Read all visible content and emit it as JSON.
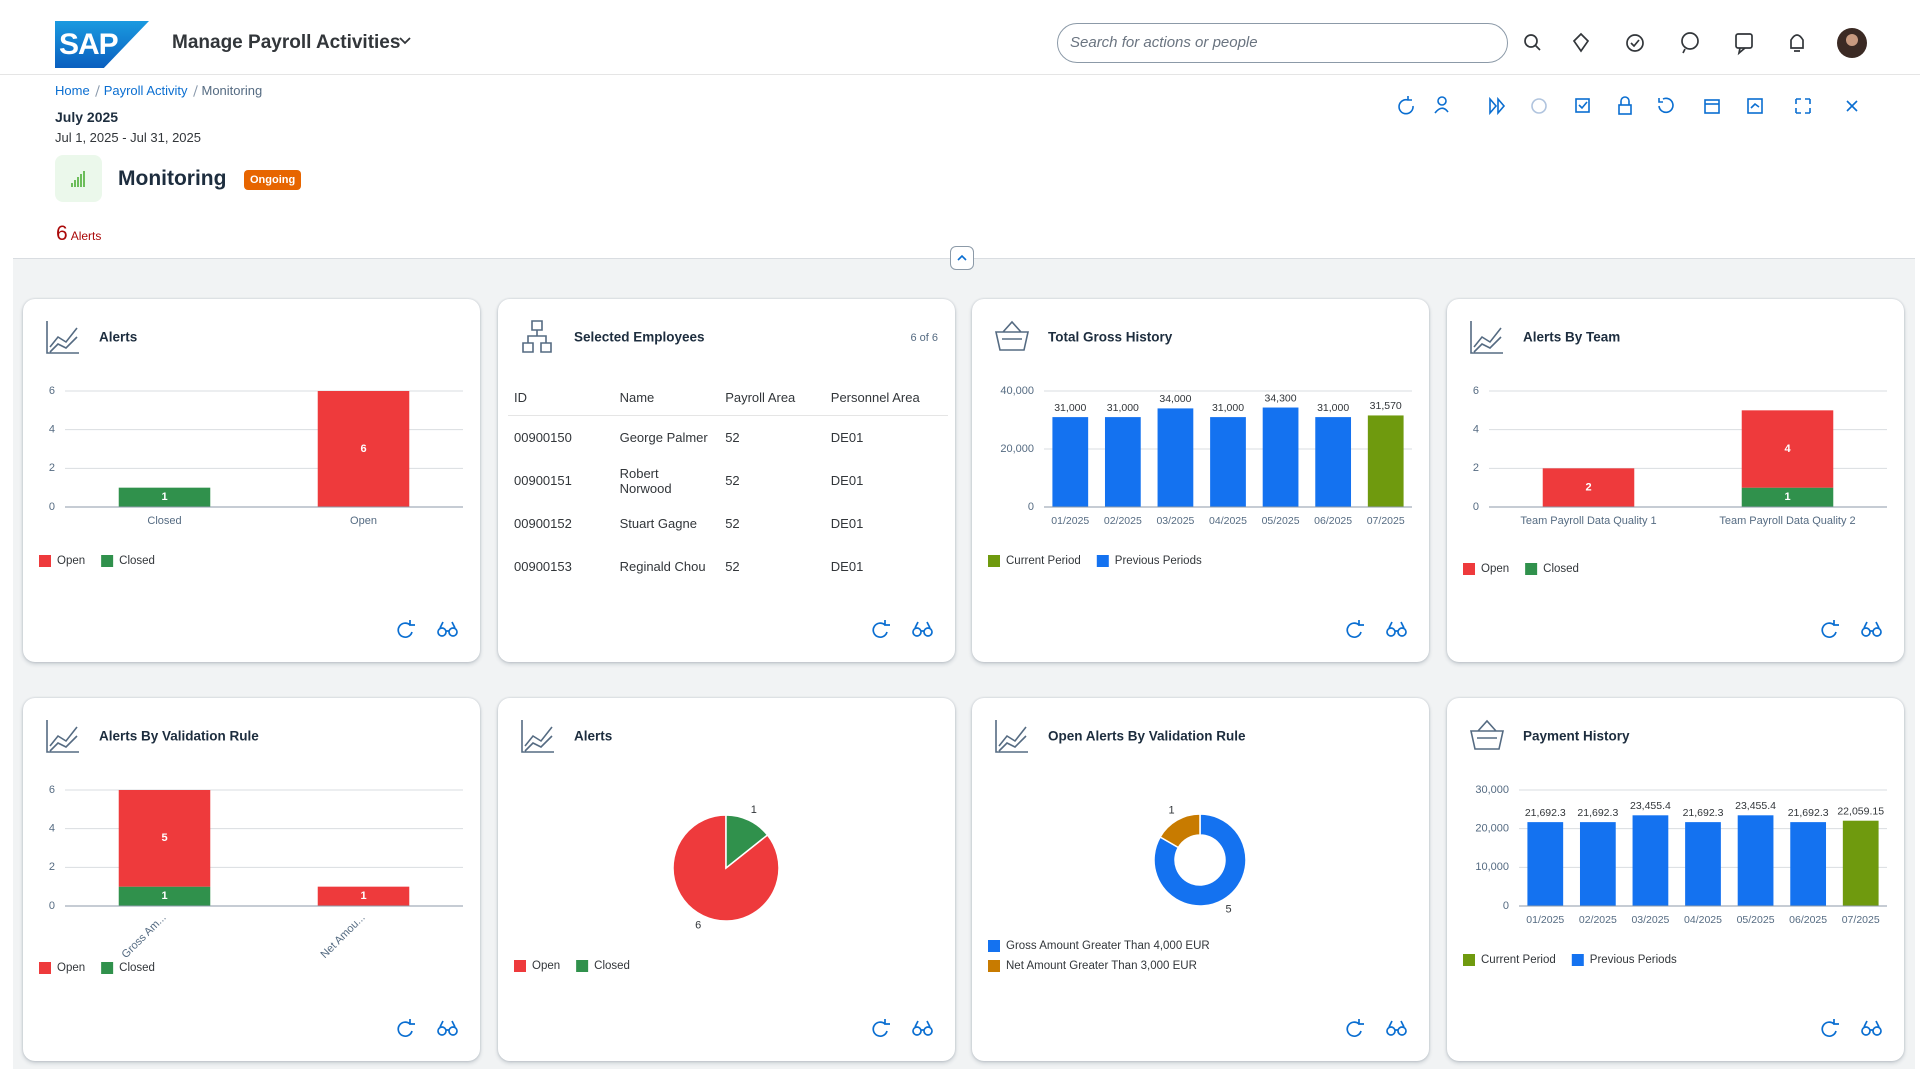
{
  "header": {
    "logo": "SAP",
    "app_title": "Manage Payroll Activities",
    "search_placeholder": "Search for actions or people"
  },
  "breadcrumbs": [
    "Home",
    "Payroll Activity",
    "Monitoring"
  ],
  "period": {
    "title": "July 2025",
    "range": "Jul 1, 2025 - Jul 31, 2025"
  },
  "object": {
    "title": "Monitoring",
    "status": "Ongoing",
    "alerts_count": 6,
    "alerts_label": "Alerts"
  },
  "table": {
    "title": "Selected Employees",
    "count": "6 of 6",
    "columns": [
      "ID",
      "Name",
      "Payroll Area",
      "Personnel Area"
    ],
    "rows": [
      [
        "00900150",
        "George Palmer",
        "52",
        "DE01"
      ],
      [
        "00900151",
        "Robert Norwood",
        "52",
        "DE01"
      ],
      [
        "00900152",
        "Stuart Gagne",
        "52",
        "DE01"
      ],
      [
        "00900153",
        "Reginald Chou",
        "52",
        "DE01"
      ]
    ]
  },
  "chart_data": [
    {
      "type": "bar",
      "title": "Alerts",
      "stacked": true,
      "grid": true,
      "categories": [
        "Closed",
        "Open"
      ],
      "series": [
        {
          "name": "Open",
          "color": "#ee3a3c",
          "values": [
            null,
            6
          ]
        },
        {
          "name": "Closed",
          "color": "#30914c",
          "values": [
            1,
            null
          ]
        }
      ],
      "ylim": [
        0,
        6
      ],
      "yticks": [
        0,
        2,
        4,
        6
      ]
    },
    {
      "type": "bar",
      "title": "Total Gross History",
      "stacked": false,
      "grid": true,
      "categories": [
        "01/2025",
        "02/2025",
        "03/2025",
        "04/2025",
        "05/2025",
        "06/2025",
        "07/2025"
      ],
      "series": [
        {
          "name": "Current Period",
          "color": "#6f9a0e",
          "values": [
            null,
            null,
            null,
            null,
            null,
            null,
            31570
          ],
          "value_labels": [
            null,
            null,
            null,
            null,
            null,
            null,
            "31,570"
          ]
        },
        {
          "name": "Previous Periods",
          "color": "#1472f0",
          "values": [
            31000,
            31000,
            34000,
            31000,
            34300,
            31000,
            null
          ],
          "value_labels": [
            "31,000",
            "31,000",
            "34,000",
            "31,000",
            "34,300",
            "31,000",
            null
          ]
        }
      ],
      "ylim": [
        0,
        40000
      ],
      "yticks": [
        0,
        {
          "value": 20000,
          "label": "20,000"
        },
        {
          "value": 40000,
          "label": "40,000"
        }
      ]
    },
    {
      "type": "bar",
      "title": "Alerts By Team",
      "stacked": true,
      "grid": true,
      "categories": [
        "Team Payroll Data Quality 1",
        "Team Payroll Data Quality 2"
      ],
      "series": [
        {
          "name": "Open",
          "color": "#ee3a3c",
          "values": [
            2,
            4
          ]
        },
        {
          "name": "Closed",
          "color": "#30914c",
          "values": [
            null,
            1
          ]
        }
      ],
      "ylim": [
        0,
        6
      ],
      "yticks": [
        0,
        2,
        4,
        6
      ]
    },
    {
      "type": "bar",
      "title": "Alerts By Validation Rule",
      "stacked": true,
      "grid": true,
      "xtick_rotation": -45,
      "categories": [
        "Gross Am...",
        "Net Amou..."
      ],
      "series": [
        {
          "name": "Open",
          "color": "#ee3a3c",
          "values": [
            5,
            1
          ]
        },
        {
          "name": "Closed",
          "color": "#30914c",
          "values": [
            1,
            null
          ]
        }
      ],
      "ylim": [
        0,
        6
      ],
      "yticks": [
        0,
        2,
        4,
        6
      ]
    },
    {
      "type": "pie",
      "title": "Alerts",
      "categories": [
        "Open",
        "Closed"
      ],
      "values": [
        6,
        1
      ],
      "colors": [
        "#ee3a3c",
        "#30914c"
      ]
    },
    {
      "type": "donut",
      "title": "Open Alerts By Validation Rule",
      "categories": [
        "Gross Amount Greater Than 4,000 EUR",
        "Net Amount Greater Than 3,000 EUR"
      ],
      "values": [
        5,
        1
      ],
      "colors": [
        "#1472f0",
        "#c87b00"
      ]
    },
    {
      "type": "bar",
      "title": "Payment History",
      "stacked": false,
      "grid": true,
      "categories": [
        "01/2025",
        "02/2025",
        "03/2025",
        "04/2025",
        "05/2025",
        "06/2025",
        "07/2025"
      ],
      "series": [
        {
          "name": "Current Period",
          "color": "#6f9a0e",
          "values": [
            null,
            null,
            null,
            null,
            null,
            null,
            22059.15
          ],
          "value_labels": [
            null,
            null,
            null,
            null,
            null,
            null,
            "22,059.15"
          ]
        },
        {
          "name": "Previous Periods",
          "color": "#1472f0",
          "values": [
            21692.3,
            21692.3,
            23455.4,
            21692.3,
            23455.4,
            21692.3,
            null
          ],
          "value_labels": [
            "21,692.3",
            "21,692.3",
            "23,455.4",
            "21,692.3",
            "23,455.4",
            "21,692.3",
            null
          ]
        }
      ],
      "ylim": [
        0,
        30000
      ],
      "yticks": [
        0,
        {
          "value": 10000,
          "label": "10,000"
        },
        {
          "value": 20000,
          "label": "20,000"
        },
        {
          "value": 30000,
          "label": "30,000"
        }
      ]
    }
  ]
}
